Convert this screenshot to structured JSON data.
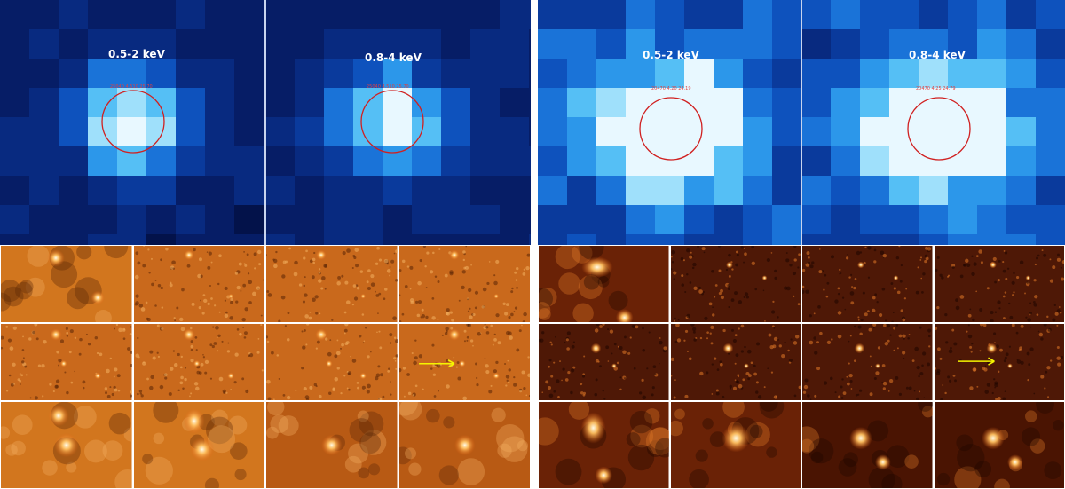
{
  "figures": [
    {
      "id": "source-1",
      "xray_panels": [
        {
          "band_label": "0.5-2 keV",
          "circle_text": "25040  4.510  25.70"
        },
        {
          "band_label": "0.8-4 keV",
          "circle_text": "25040  4.510  25.70"
        }
      ],
      "stamp_grid": {
        "rows": 3,
        "cols": 4
      },
      "arrow_color": "#f5f500"
    },
    {
      "id": "source-2",
      "xray_panels": [
        {
          "band_label": "0.5-2 keV",
          "circle_text": "20470  4.20  24.19"
        },
        {
          "band_label": "0.8-4 keV",
          "circle_text": "20470  4.25  24.79"
        }
      ],
      "stamp_grid": {
        "rows": 3,
        "cols": 4
      },
      "arrow_color": "#f5f500"
    }
  ],
  "colors": {
    "xray_background": "#061a5c",
    "xray_peak": "#e8f8ff",
    "circle": "#d02020",
    "optical_dark": "#3a1200",
    "optical_bright": "#fff4d0"
  }
}
